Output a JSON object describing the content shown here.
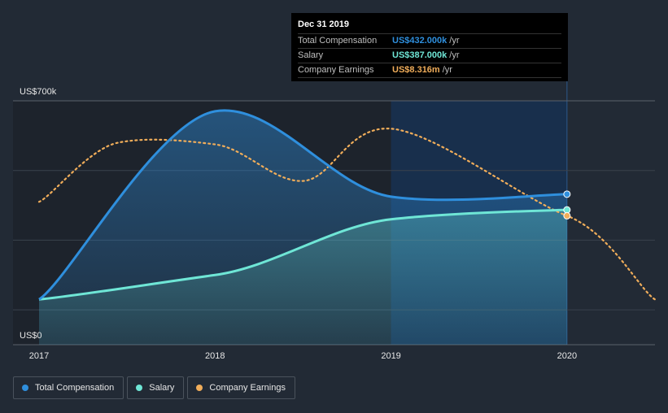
{
  "chart_data": {
    "type": "line",
    "x": [
      2017,
      2018,
      2019,
      2020
    ],
    "xlim": [
      2017,
      2020.5
    ],
    "ylim": [
      0,
      700000
    ],
    "ytick_labels": [
      "US$0",
      "US$700k"
    ],
    "xtick_labels": [
      "2017",
      "2018",
      "2019",
      "2020"
    ],
    "grid": true,
    "legend_position": "bottom-left",
    "series": [
      {
        "name": "Total Compensation",
        "color": "#2f8fdd",
        "points": [
          [
            2017,
            130000
          ],
          [
            2018,
            670000
          ],
          [
            2019,
            425000
          ],
          [
            2020,
            432000
          ]
        ]
      },
      {
        "name": "Salary",
        "color": "#6fe6d6",
        "points": [
          [
            2017,
            130000
          ],
          [
            2018,
            200000
          ],
          [
            2019,
            360000
          ],
          [
            2020,
            387000
          ]
        ]
      },
      {
        "name": "Company Earnings",
        "color": "#f0ad5a",
        "points": [
          [
            2017,
            410000
          ],
          [
            2017.45,
            580000
          ],
          [
            2018,
            575000
          ],
          [
            2018.5,
            470000
          ],
          [
            2019,
            620000
          ],
          [
            2020,
            370000
          ],
          [
            2020.5,
            130000
          ]
        ]
      }
    ],
    "tooltip": {
      "title": "Dec 31 2019",
      "rows": [
        {
          "label": "Total Compensation",
          "value": "US$432.000k",
          "unit": "/yr",
          "color": "#2f8fdd"
        },
        {
          "label": "Salary",
          "value": "US$387.000k",
          "unit": "/yr",
          "color": "#6fe6d6"
        },
        {
          "label": "Company Earnings",
          "value": "US$8.316m",
          "unit": "/yr",
          "color": "#f0ad5a"
        }
      ]
    },
    "highlight_range": [
      2019,
      2020
    ]
  }
}
